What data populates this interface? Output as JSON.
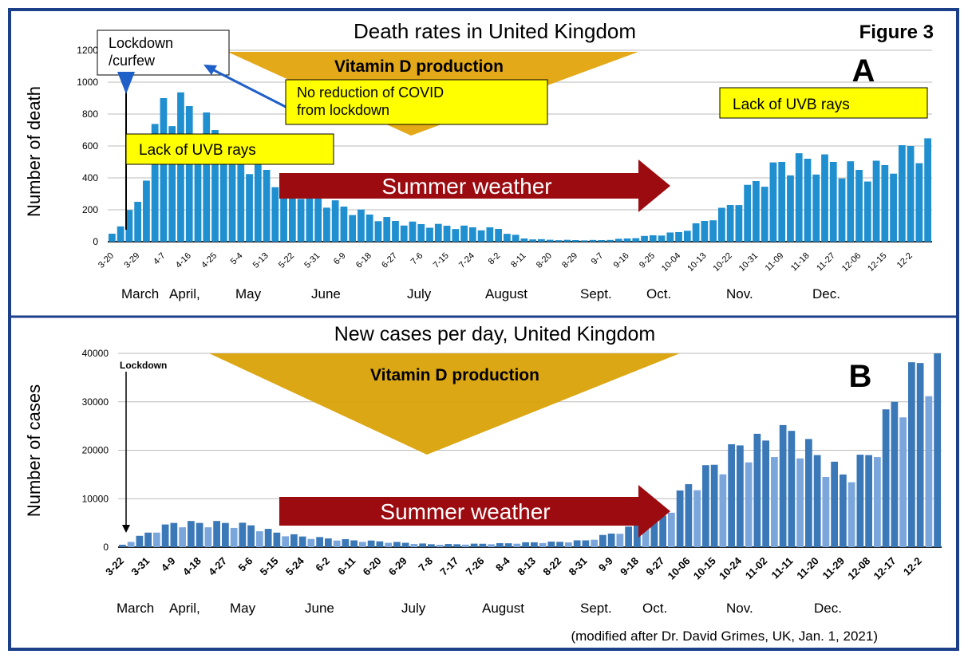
{
  "figure_label": "Figure 3",
  "credit": "(modified after Dr. David Grimes, UK, Jan. 1, 2021)",
  "colors": {
    "bar": "#1f8fd0",
    "bar_light": "#7aa6dc",
    "triangle": "#e0a000",
    "callout": "#ffff00",
    "arrow": "#9b0b10",
    "frame": "#1c3f8a"
  },
  "chart_data": [
    {
      "type": "bar",
      "panel": "A",
      "title": "Death rates in United Kingdom",
      "ylabel": "Number of death",
      "ylim": [
        0,
        1200
      ],
      "yticks": [
        "0",
        "200",
        "400",
        "600",
        "800",
        "1000",
        "1200"
      ],
      "grid": true,
      "categories": [
        "3-20",
        "3-29",
        "4-7",
        "4-16",
        "4-25",
        "5-4",
        "5-13",
        "5-22",
        "5-31",
        "6-9",
        "6-18",
        "6-27",
        "7-6",
        "7-15",
        "7-24",
        "8-2",
        "8-11",
        "8-20",
        "8-29",
        "9-7",
        "9-16",
        "9-25",
        "10-04",
        "10-13",
        "10-22",
        "10-31",
        "11-09",
        "11-18",
        "11-27",
        "12-06",
        "12-15",
        "12-2"
      ],
      "values": [
        50,
        250,
        900,
        850,
        700,
        550,
        450,
        350,
        280,
        220,
        170,
        130,
        110,
        100,
        90,
        80,
        20,
        12,
        10,
        10,
        20,
        40,
        60,
        130,
        230,
        380,
        500,
        520,
        500,
        450,
        480,
        600
      ],
      "months": [
        "March",
        "April,",
        "May",
        "June",
        "July",
        "August",
        "Sept.",
        "Oct.",
        "Nov.",
        "Dec."
      ],
      "annotations": {
        "lockdown": "Lockdown\n/curfew",
        "lockdown_l1": "Lockdown",
        "lockdown_l2": "/curfew",
        "vitamin": "Vitamin D production",
        "no_reduction_l1": "No reduction of COVID",
        "no_reduction_l2": "from lockdown",
        "uvb_left": "Lack of UVB rays",
        "uvb_right": "Lack of UVB rays",
        "summer": "Summer weather"
      }
    },
    {
      "type": "bar",
      "panel": "B",
      "title": "New cases per day, United Kingdom",
      "ylabel": "Number of cases",
      "ylim": [
        0,
        40000
      ],
      "yticks": [
        "0",
        "10000",
        "20000",
        "30000",
        "40000"
      ],
      "grid": true,
      "categories": [
        "3-22",
        "3-31",
        "4-9",
        "4-18",
        "4-27",
        "5-6",
        "5-15",
        "5-24",
        "6-2",
        "6-11",
        "6-20",
        "6-29",
        "7-8",
        "7-17",
        "7-26",
        "8-4",
        "8-13",
        "8-22",
        "8-31",
        "9-9",
        "9-18",
        "9-27",
        "10-06",
        "10-15",
        "10-24",
        "11-02",
        "11-11",
        "11-20",
        "11-29",
        "12-08",
        "12-17",
        "12-2"
      ],
      "values": [
        500,
        3000,
        5000,
        5000,
        5000,
        4500,
        3000,
        2200,
        1800,
        1400,
        1200,
        900,
        600,
        600,
        700,
        800,
        1000,
        1100,
        1400,
        2800,
        4500,
        6500,
        13000,
        17000,
        21000,
        22000,
        24000,
        19000,
        15000,
        19000,
        30000,
        38000
      ],
      "months": [
        "March",
        "April,",
        "May",
        "June",
        "July",
        "August",
        "Sept.",
        "Oct.",
        "Nov.",
        "Dec."
      ],
      "annotations": {
        "lockdown": "Lockdown",
        "vitamin": "Vitamin D production",
        "summer": "Summer weather"
      }
    }
  ]
}
